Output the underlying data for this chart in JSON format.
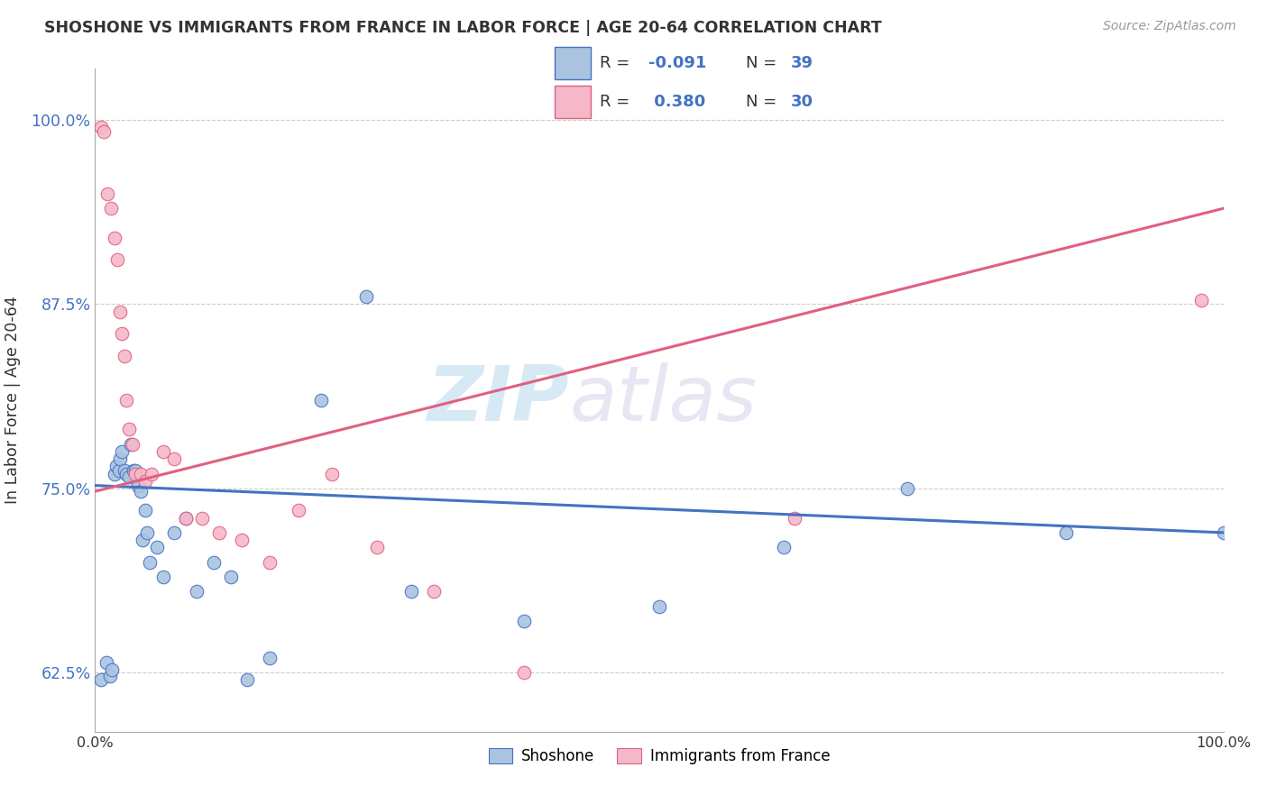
{
  "title": "SHOSHONE VS IMMIGRANTS FROM FRANCE IN LABOR FORCE | AGE 20-64 CORRELATION CHART",
  "source_text": "Source: ZipAtlas.com",
  "ylabel": "In Labor Force | Age 20-64",
  "xlim": [
    0.0,
    1.0
  ],
  "ylim": [
    0.585,
    1.035
  ],
  "ytick_positions": [
    0.625,
    0.75,
    0.875,
    1.0
  ],
  "yticklabels": [
    "62.5%",
    "75.0%",
    "87.5%",
    "100.0%"
  ],
  "xtick_positions": [
    0.0,
    0.1,
    0.2,
    0.3,
    0.4,
    0.5,
    0.6,
    0.7,
    0.8,
    0.9,
    1.0
  ],
  "xticklabels": [
    "0.0%",
    "",
    "",
    "",
    "",
    "",
    "",
    "",
    "",
    "",
    "100.0%"
  ],
  "legend_labels": [
    "Shoshone",
    "Immigrants from France"
  ],
  "watermark_zip": "ZIP",
  "watermark_atlas": "atlas",
  "shoshone_color": "#aac4e0",
  "france_color": "#f5b8c8",
  "trend_blue": "#4472c4",
  "trend_pink": "#e06080",
  "ytick_color": "#4472c4",
  "shoshone_x": [
    0.005,
    0.01,
    0.013,
    0.015,
    0.017,
    0.019,
    0.021,
    0.022,
    0.024,
    0.026,
    0.028,
    0.03,
    0.032,
    0.034,
    0.036,
    0.038,
    0.04,
    0.042,
    0.044,
    0.046,
    0.048,
    0.055,
    0.06,
    0.07,
    0.08,
    0.09,
    0.105,
    0.12,
    0.135,
    0.155,
    0.2,
    0.24,
    0.28,
    0.38,
    0.5,
    0.61,
    0.72,
    0.86,
    1.0
  ],
  "shoshone_y": [
    0.62,
    0.632,
    0.623,
    0.627,
    0.76,
    0.765,
    0.762,
    0.77,
    0.775,
    0.762,
    0.76,
    0.758,
    0.78,
    0.762,
    0.762,
    0.752,
    0.748,
    0.715,
    0.735,
    0.72,
    0.7,
    0.71,
    0.69,
    0.72,
    0.73,
    0.68,
    0.7,
    0.69,
    0.62,
    0.635,
    0.81,
    0.88,
    0.68,
    0.66,
    0.67,
    0.71,
    0.75,
    0.72,
    0.72
  ],
  "france_x": [
    0.005,
    0.008,
    0.011,
    0.014,
    0.017,
    0.02,
    0.022,
    0.024,
    0.026,
    0.028,
    0.03,
    0.033,
    0.036,
    0.04,
    0.044,
    0.05,
    0.06,
    0.07,
    0.08,
    0.095,
    0.11,
    0.13,
    0.155,
    0.18,
    0.21,
    0.25,
    0.3,
    0.38,
    0.62,
    0.98
  ],
  "france_y": [
    0.995,
    0.992,
    0.95,
    0.94,
    0.92,
    0.905,
    0.87,
    0.855,
    0.84,
    0.81,
    0.79,
    0.78,
    0.76,
    0.76,
    0.755,
    0.76,
    0.775,
    0.77,
    0.73,
    0.73,
    0.72,
    0.715,
    0.7,
    0.735,
    0.76,
    0.71,
    0.68,
    0.625,
    0.73,
    0.878
  ],
  "trend_blue_x0": 0.0,
  "trend_blue_x1": 1.0,
  "trend_blue_y0": 0.752,
  "trend_blue_y1": 0.72,
  "trend_pink_x0": 0.0,
  "trend_pink_x1": 1.0,
  "trend_pink_y0": 0.748,
  "trend_pink_y1": 0.94
}
